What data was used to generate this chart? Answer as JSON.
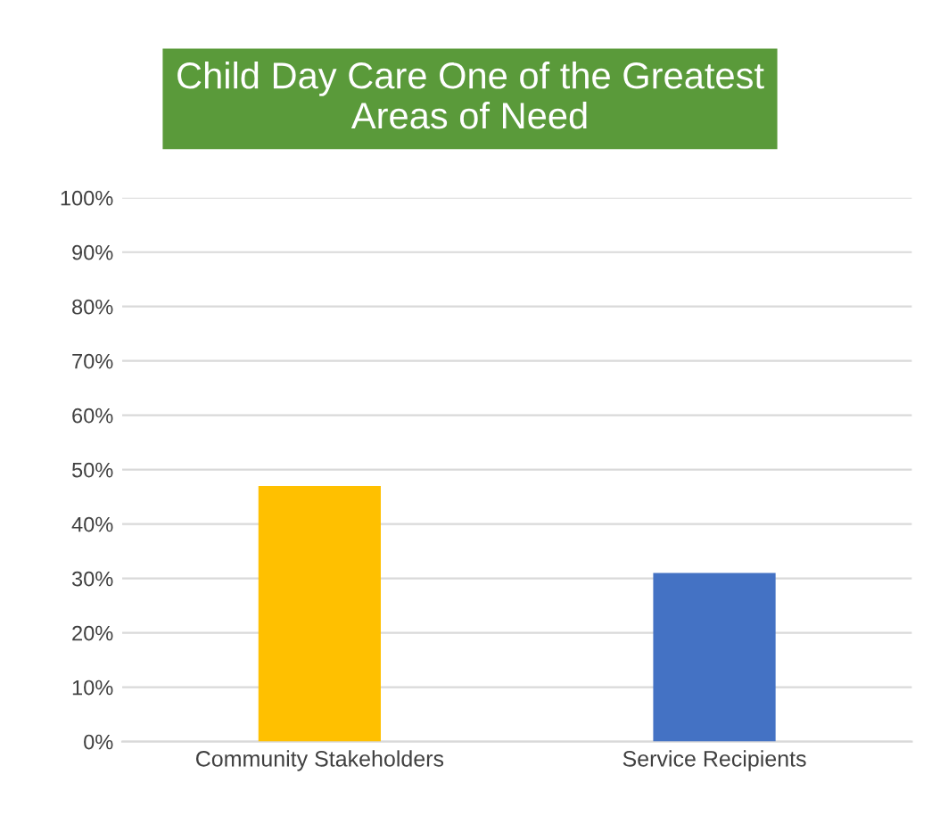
{
  "chart_data": {
    "type": "bar",
    "title": "Child Day Care One of the Greatest\nAreas of Need",
    "categories": [
      "Community Stakeholders",
      "Service Recipients"
    ],
    "values": [
      47,
      31
    ],
    "colors": [
      "#ffc000",
      "#4472c4"
    ],
    "ylim": [
      0,
      100
    ],
    "yticks": [
      {
        "value": 0,
        "label": "0%"
      },
      {
        "value": 10,
        "label": "10%"
      },
      {
        "value": 20,
        "label": "20%"
      },
      {
        "value": 30,
        "label": "30%"
      },
      {
        "value": 40,
        "label": "40%"
      },
      {
        "value": 50,
        "label": "50%"
      },
      {
        "value": 60,
        "label": "60%"
      },
      {
        "value": 70,
        "label": "70%"
      },
      {
        "value": 80,
        "label": "80%"
      },
      {
        "value": 90,
        "label": "90%"
      },
      {
        "value": 100,
        "label": "100%"
      }
    ],
    "grid": "y",
    "legend": false
  }
}
